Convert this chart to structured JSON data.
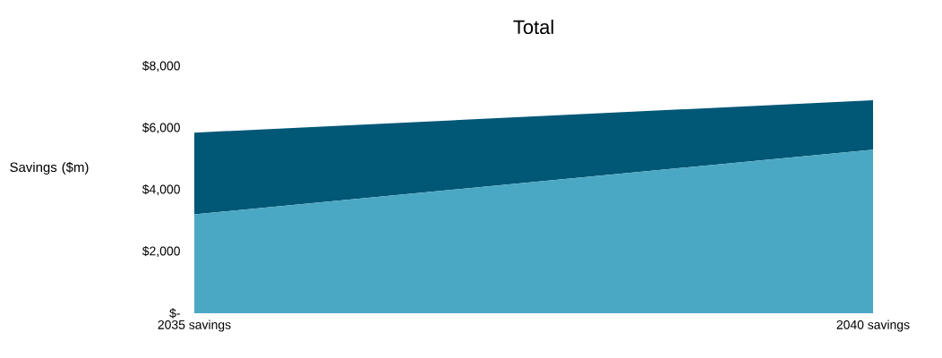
{
  "chart_data": {
    "type": "area",
    "title": "Total",
    "ylabel": "Savings ($m)",
    "stacked": true,
    "categories": [
      "2035 savings",
      "2040 savings"
    ],
    "series": [
      {
        "color": "#4ba8c4",
        "values": [
          3200,
          5300
        ]
      },
      {
        "color": "#005776",
        "values": [
          2650,
          1600
        ]
      }
    ],
    "ylim": [
      0,
      8000
    ],
    "yticks": [
      {
        "value": 0,
        "label": "$-"
      },
      {
        "value": 2000,
        "label": "$2,000"
      },
      {
        "value": 4000,
        "label": "$4,000"
      },
      {
        "value": 6000,
        "label": "$6,000"
      },
      {
        "value": 8000,
        "label": "$8,000"
      }
    ]
  }
}
